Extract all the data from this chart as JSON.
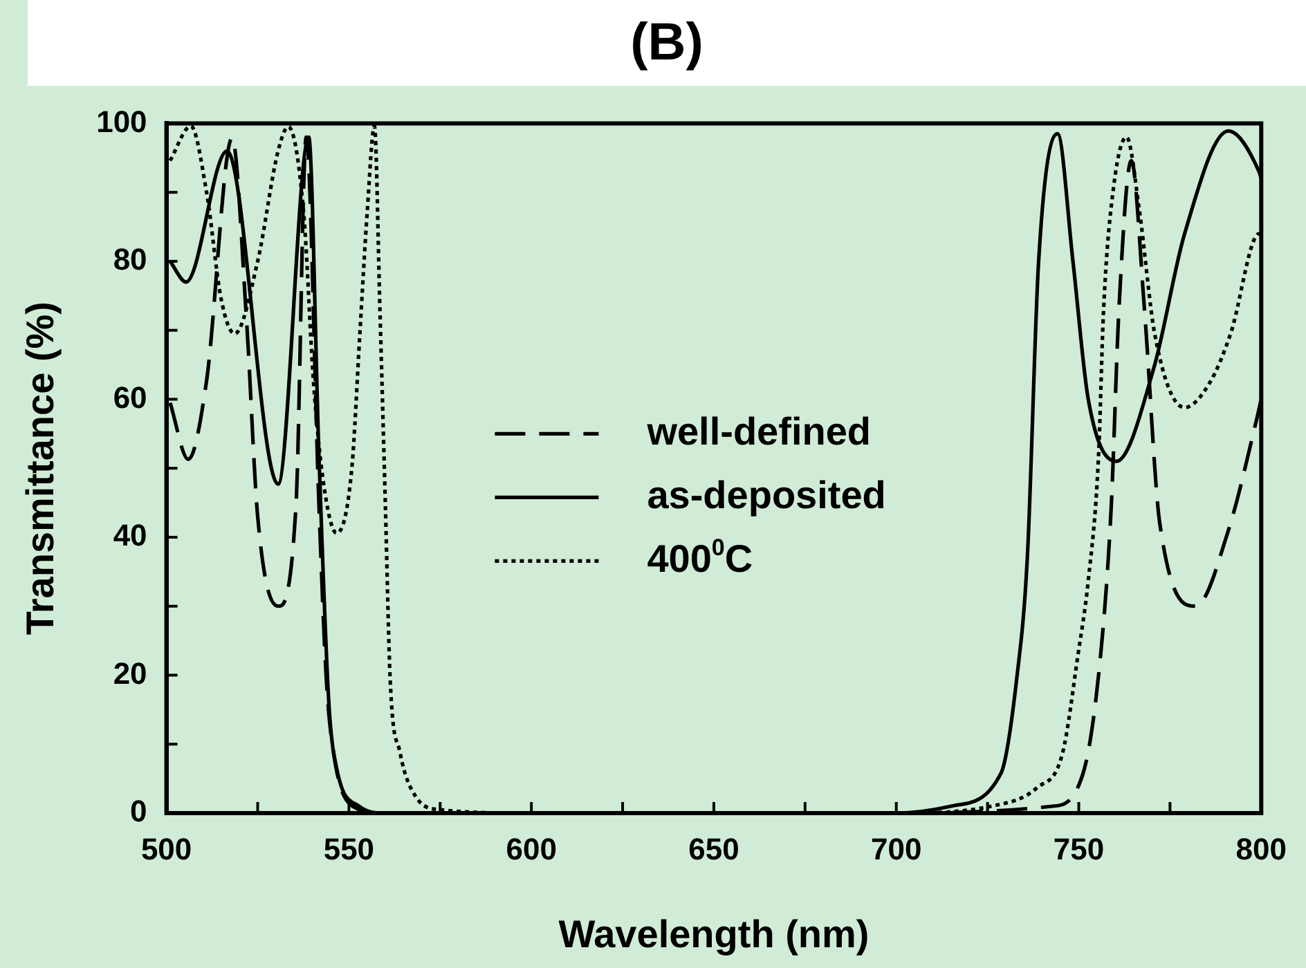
{
  "chart_data": {
    "type": "line",
    "title": "(B)",
    "xlabel": "Wavelength (nm)",
    "ylabel": "Transmittance (%)",
    "xlim": [
      500,
      800
    ],
    "xticks": [
      500,
      {
        "value": 525,
        "label": null
      },
      550,
      {
        "value": 575,
        "label": null
      },
      600,
      {
        "value": 625,
        "label": null
      },
      650,
      {
        "value": 675,
        "label": null
      },
      700,
      {
        "value": 725,
        "label": null
      },
      750,
      {
        "value": 775,
        "label": null
      },
      800
    ],
    "ylim": [
      0,
      100
    ],
    "yticks": [
      0,
      {
        "value": 10,
        "label": null
      },
      20,
      {
        "value": 30,
        "label": null
      },
      40,
      {
        "value": 50,
        "label": null
      },
      60,
      {
        "value": 70,
        "label": null
      },
      80,
      {
        "value": 90,
        "label": null
      },
      100
    ],
    "grid": false,
    "legend": "center",
    "marker": "none",
    "series": [
      {
        "name": "well-defined",
        "color": "#000000",
        "line_style": "dashed",
        "x": [
          501,
          506,
          511,
          518,
          522,
          525,
          530.6,
          535.5,
          538.3,
          541.8,
          543.8,
          546,
          551,
          560,
          600,
          650,
          700,
          742.8,
          751.2,
          756,
          758.9,
          761,
          764.4,
          768,
          772.2,
          782,
          791,
          798.7,
          800
        ],
        "values": [
          59.5,
          51.3,
          62.7,
          97.9,
          71,
          43,
          30,
          44.5,
          98,
          44.5,
          19.5,
          8,
          1,
          0,
          0,
          0,
          0,
          1,
          5.8,
          23,
          44.5,
          73,
          94.6,
          73,
          42,
          30,
          41,
          57,
          60
        ]
      },
      {
        "name": "as-deposited",
        "color": "#000000",
        "line_style": "solid",
        "x": [
          501,
          505.4,
          516.6,
          530.6,
          539,
          541.8,
          544.5,
          546.6,
          552.8,
          560,
          600,
          650,
          700,
          715,
          728.7,
          733,
          735.9,
          739,
          744.2,
          748.4,
          752.6,
          760.3,
          770.6,
          779,
          791,
          799.4,
          800
        ],
        "values": [
          80,
          77,
          96,
          47.7,
          98,
          51.7,
          16,
          6.6,
          1,
          0,
          0,
          0,
          0,
          1,
          5.8,
          19.5,
          37,
          80,
          98.5,
          80,
          60,
          51,
          64.6,
          84,
          98.9,
          93,
          92
        ]
      },
      {
        "name": "400$^{0}$C",
        "color": "#000000",
        "line_style": "dotted",
        "x": [
          501,
          506.7,
          511,
          515,
          518.7,
          525,
          530.6,
          533.4,
          537.6,
          540.3,
          543,
          546.6,
          550.8,
          553,
          555,
          557,
          558.5,
          560,
          561.3,
          564,
          568.3,
          575,
          600,
          650,
          700,
          726,
          738.6,
          745.6,
          749.8,
          752.6,
          755.4,
          756.8,
          759.6,
          763.1,
          766.6,
          770.8,
          779,
          786,
          791.6,
          799.4,
          800
        ],
        "values": [
          94.6,
          99.6,
          90,
          74.5,
          69.5,
          80,
          96,
          99.5,
          87,
          62.5,
          48,
          40.6,
          50,
          69.5,
          87,
          99.6,
          73,
          44.5,
          19.5,
          8.8,
          2.4,
          0.5,
          0,
          0,
          0,
          1,
          3.7,
          8.8,
          23,
          33.7,
          51.6,
          73,
          91,
          98,
          87.4,
          69.5,
          58.8,
          62.5,
          69.5,
          84,
          84
        ]
      }
    ]
  }
}
